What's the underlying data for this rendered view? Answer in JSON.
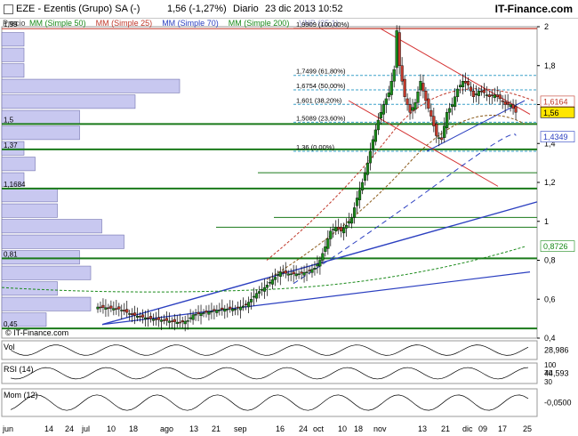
{
  "header": {
    "ticker": "EZE - Ezentis (Grupo) SA (-)",
    "last": "1,56 (-1,27%)",
    "period": "Diario",
    "datetime": "23 dic 2013 10:52",
    "brand": "IT-Finance.com"
  },
  "legend": {
    "price": "Precio",
    "items": [
      {
        "label": "MM (Simple 50)",
        "color": "#1a8a1a"
      },
      {
        "label": "MM (Simple 25)",
        "color": "#c0392b"
      },
      {
        "label": "MM (Simple 70)",
        "color": "#2b3fc0"
      },
      {
        "label": "MM (Simple 200)",
        "color": "#1a8a1a"
      },
      {
        "label": "VNP (25,1)",
        "color": "#9a9ac8"
      }
    ]
  },
  "watermark": "© IT-Finance.com",
  "colors": {
    "up": "#1a8a1a",
    "down": "#c0392b",
    "sma25": "#c0392b",
    "sma50": "#8a5a1a",
    "sma70": "#2b3fc0",
    "sma200": "#1a8a1a",
    "support": "#1a7a1a",
    "trend": "#2b3fc0",
    "channel": "#d43030",
    "profile": "#c8c8f0",
    "fib": "#3aa0c8"
  },
  "chart_data": {
    "type": "candlestick",
    "yaxis": {
      "min": 0.4,
      "max": 2.0,
      "ticks": [
        0.4,
        0.6,
        0.8,
        1.0,
        1.2,
        1.4,
        1.6,
        1.8,
        2.0
      ],
      "tick_labels": [
        "0,4",
        "0,6",
        "0,8",
        "1",
        "1,2",
        "1,4",
        "1,6",
        "1,8",
        "2"
      ]
    },
    "xaxis_labels": [
      "jun",
      "14",
      "24",
      "jul",
      "10",
      "18",
      "ago",
      "13",
      "21",
      "sep",
      "16",
      "24",
      "oct",
      "10",
      "18",
      "nov",
      "13",
      "21",
      "dic",
      "09",
      "17",
      "25"
    ],
    "price_tags": [
      {
        "value": 1.6164,
        "label": "1,6164",
        "style": "red"
      },
      {
        "value": 1.56,
        "label": "1,56",
        "style": "yellow"
      },
      {
        "value": 1.4349,
        "label": "1,4349",
        "style": "blue"
      },
      {
        "value": 0.8726,
        "label": "0,8726",
        "style": "green"
      }
    ],
    "support_levels": [
      {
        "value": 1.99,
        "label": "1,99"
      },
      {
        "value": 1.5,
        "label": "1,5"
      },
      {
        "value": 1.37,
        "label": "1,37"
      },
      {
        "value": 1.1684,
        "label": "1,1684"
      },
      {
        "value": 0.81,
        "label": "0,81"
      },
      {
        "value": 0.45,
        "label": "0,45"
      }
    ],
    "fibonacci": [
      {
        "value": 1.9909,
        "label": "1,9909 (100,00%)"
      },
      {
        "value": 1.7499,
        "label": "1,7499 (61,80%)"
      },
      {
        "value": 1.6754,
        "label": "1,6754 (50,00%)"
      },
      {
        "value": 1.601,
        "label": "1,601 (38,20%)"
      },
      {
        "value": 1.5089,
        "label": "1,5089 (23,60%)"
      },
      {
        "value": 1.36,
        "label": "1,36 (0,00%)"
      }
    ],
    "volume_profile": [
      {
        "low": 1.9,
        "high": 1.97,
        "volume": 2
      },
      {
        "low": 1.82,
        "high": 1.89,
        "volume": 2
      },
      {
        "low": 1.74,
        "high": 1.81,
        "volume": 2
      },
      {
        "low": 1.66,
        "high": 1.73,
        "volume": 16
      },
      {
        "low": 1.58,
        "high": 1.65,
        "volume": 12
      },
      {
        "low": 1.5,
        "high": 1.57,
        "volume": 7
      },
      {
        "low": 1.42,
        "high": 1.49,
        "volume": 7
      },
      {
        "low": 1.34,
        "high": 1.41,
        "volume": 2
      },
      {
        "low": 1.26,
        "high": 1.33,
        "volume": 3
      },
      {
        "low": 1.18,
        "high": 1.25,
        "volume": 2
      },
      {
        "low": 1.1,
        "high": 1.17,
        "volume": 5
      },
      {
        "low": 1.02,
        "high": 1.09,
        "volume": 5
      },
      {
        "low": 0.94,
        "high": 1.01,
        "volume": 9
      },
      {
        "low": 0.86,
        "high": 0.93,
        "volume": 11
      },
      {
        "low": 0.78,
        "high": 0.85,
        "volume": 7
      },
      {
        "low": 0.7,
        "high": 0.77,
        "volume": 8
      },
      {
        "low": 0.62,
        "high": 0.69,
        "volume": 5
      },
      {
        "low": 0.54,
        "high": 0.61,
        "volume": 8
      },
      {
        "low": 0.46,
        "high": 0.53,
        "volume": 4
      }
    ],
    "close_path": [
      [
        0,
        0.56
      ],
      [
        8,
        0.55
      ],
      [
        13,
        0.52
      ],
      [
        16,
        0.51
      ],
      [
        20,
        0.5
      ],
      [
        26,
        0.49
      ],
      [
        31,
        0.48
      ],
      [
        34,
        0.49
      ],
      [
        36,
        0.52
      ],
      [
        40,
        0.53
      ],
      [
        44,
        0.54
      ],
      [
        48,
        0.55
      ],
      [
        52,
        0.55
      ],
      [
        56,
        0.57
      ],
      [
        58,
        0.6
      ],
      [
        60,
        0.63
      ],
      [
        63,
        0.66
      ],
      [
        66,
        0.7
      ],
      [
        69,
        0.74
      ],
      [
        72,
        0.73
      ],
      [
        76,
        0.73
      ],
      [
        79,
        0.74
      ],
      [
        82,
        0.76
      ],
      [
        84,
        0.8
      ],
      [
        86,
        0.87
      ],
      [
        88,
        0.95
      ],
      [
        90,
        0.97
      ],
      [
        92,
        0.95
      ],
      [
        94,
        0.98
      ],
      [
        96,
        1.02
      ],
      [
        98,
        1.12
      ],
      [
        100,
        1.2
      ],
      [
        102,
        1.3
      ],
      [
        104,
        1.42
      ],
      [
        106,
        1.52
      ],
      [
        108,
        1.6
      ],
      [
        110,
        1.66
      ],
      [
        112,
        1.78
      ],
      [
        113,
        1.98
      ],
      [
        114,
        1.8
      ],
      [
        116,
        1.64
      ],
      [
        118,
        1.56
      ],
      [
        120,
        1.61
      ],
      [
        122,
        1.72
      ],
      [
        124,
        1.62
      ],
      [
        126,
        1.54
      ],
      [
        128,
        1.44
      ],
      [
        130,
        1.42
      ],
      [
        132,
        1.56
      ],
      [
        134,
        1.6
      ],
      [
        136,
        1.68
      ],
      [
        138,
        1.72
      ],
      [
        140,
        1.7
      ],
      [
        142,
        1.64
      ],
      [
        144,
        1.67
      ],
      [
        146,
        1.66
      ],
      [
        148,
        1.64
      ],
      [
        150,
        1.65
      ],
      [
        152,
        1.63
      ],
      [
        154,
        1.6
      ],
      [
        156,
        1.6
      ],
      [
        158,
        1.56
      ]
    ],
    "indicators": [
      {
        "name": "Vol",
        "value_label": "28,986"
      },
      {
        "name": "RSI (14)",
        "value_label": "44,593",
        "ticks": [
          "100",
          "70",
          "30"
        ]
      },
      {
        "name": "Mom (12)",
        "value_label": "-0,0500"
      }
    ]
  }
}
